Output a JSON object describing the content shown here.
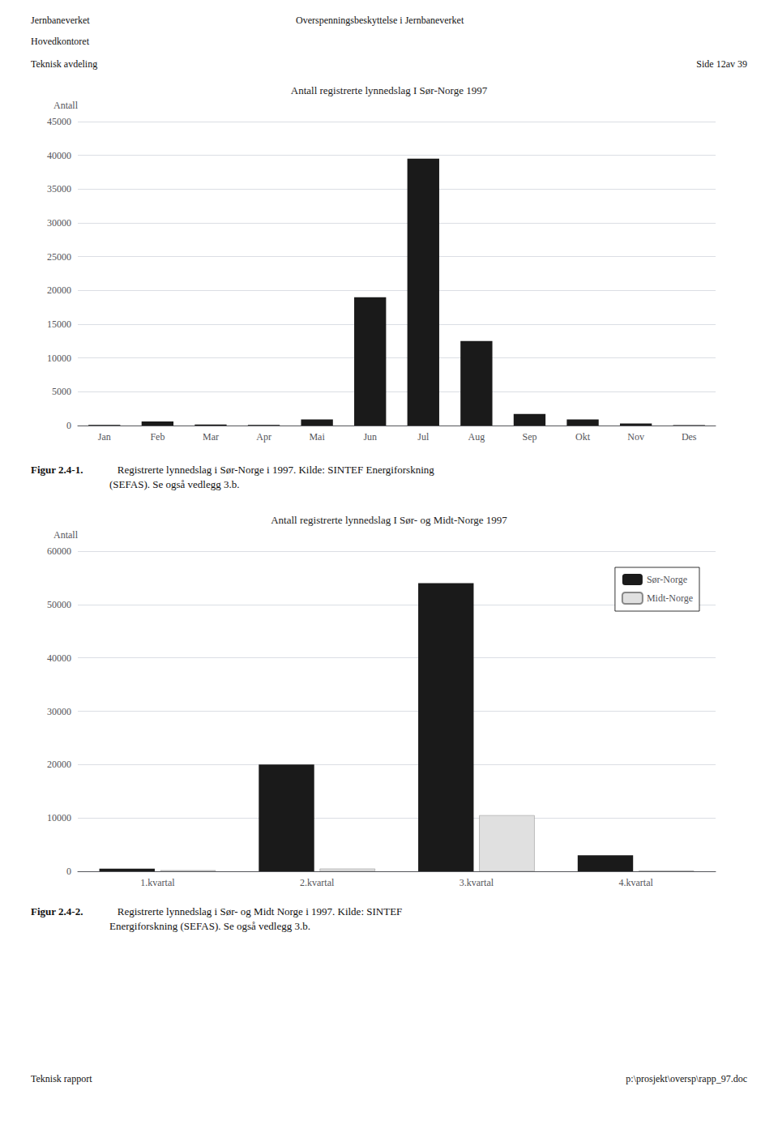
{
  "chart_data": [
    {
      "type": "bar",
      "title": "Antall registrerte lynnedslag I Sør-Norge 1997",
      "ylabel": "Antall",
      "categories": [
        "Jan",
        "Feb",
        "Mar",
        "Apr",
        "Mai",
        "Jun",
        "Jul",
        "Aug",
        "Sep",
        "Okt",
        "Nov",
        "Des"
      ],
      "values": [
        100,
        600,
        150,
        100,
        900,
        19000,
        39500,
        12500,
        1700,
        900,
        300,
        50
      ],
      "color": "#1a1a1a",
      "ylim": [
        0,
        45000
      ],
      "yticks": [
        0,
        5000,
        10000,
        15000,
        20000,
        25000,
        30000,
        35000,
        40000,
        45000
      ],
      "grid": true,
      "annotations": [
        "Jernbaneverket",
        "Hovedkontoret",
        "Teknisk avdeling",
        "Overspenningsbeskyttelse i Jernbaneverket",
        "Side 12av 39",
        "Figur 2.4-1.",
        "   Registrerte lynnedslag i Sør-Norge i 1997. Kilde: SINTEF Energiforskning\n(SEFAS). Se også vedlegg 3.b."
      ]
    },
    {
      "type": "bar",
      "title": "Antall registrerte lynnedslag I Sør- og Midt-Norge 1997",
      "ylabel": "Antall",
      "categories": [
        "1.kvartal",
        "2.kvartal",
        "3.kvartal",
        "4.kvartal"
      ],
      "series": [
        {
          "name": "Sør-Norge",
          "color": "#1a1a1a",
          "values": [
            500,
            20000,
            54000,
            3000
          ]
        },
        {
          "name": "Midt-Norge",
          "color": "#e0e0e0",
          "values": [
            200,
            500,
            10500,
            100
          ]
        }
      ],
      "ylim": [
        0,
        60000
      ],
      "yticks": [
        0,
        10000,
        20000,
        30000,
        40000,
        50000,
        60000
      ],
      "grid": true,
      "legend": "upper right",
      "annotations": [
        "Figur 2.4-2.",
        "   Registrerte lynnedslag i Sør- og Midt Norge i 1997. Kilde: SINTEF\nEnergiforskning (SEFAS). Se også vedlegg 3.b.",
        "Teknisk rapport",
        "p:\\prosjekt\\oversp\\rapp_97.doc"
      ]
    }
  ]
}
